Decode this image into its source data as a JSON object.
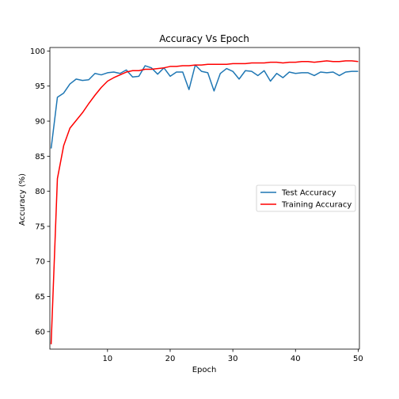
{
  "chart_data": {
    "type": "line",
    "title": "Accuracy Vs Epoch",
    "xlabel": "Epoch",
    "ylabel": "Accuracy (%)",
    "xlim": [
      0.8,
      50.2
    ],
    "ylim": [
      57.5,
      100.5
    ],
    "xticks": [
      10,
      20,
      30,
      40,
      50
    ],
    "yticks": [
      60,
      65,
      70,
      75,
      80,
      85,
      90,
      95,
      100
    ],
    "grid": false,
    "legend_position": "center-right",
    "x": [
      1,
      2,
      3,
      4,
      5,
      6,
      7,
      8,
      9,
      10,
      11,
      12,
      13,
      14,
      15,
      16,
      17,
      18,
      19,
      20,
      21,
      22,
      23,
      24,
      25,
      26,
      27,
      28,
      29,
      30,
      31,
      32,
      33,
      34,
      35,
      36,
      37,
      38,
      39,
      40,
      41,
      42,
      43,
      44,
      45,
      46,
      47,
      48,
      49,
      50
    ],
    "series": [
      {
        "name": "Test Accuracy",
        "color": "#1f77b4",
        "values": [
          86.1,
          93.4,
          94.0,
          95.3,
          96.0,
          95.8,
          95.9,
          96.8,
          96.6,
          96.9,
          97.0,
          96.8,
          97.3,
          96.3,
          96.4,
          97.9,
          97.6,
          96.7,
          97.6,
          96.4,
          97.0,
          97.0,
          94.5,
          98.0,
          97.1,
          96.9,
          94.3,
          96.8,
          97.5,
          97.1,
          96.0,
          97.2,
          97.1,
          96.5,
          97.2,
          95.7,
          96.8,
          96.2,
          97.0,
          96.8,
          96.9,
          96.9,
          96.5,
          97.0,
          96.9,
          97.0,
          96.5,
          97.0,
          97.1,
          97.1
        ]
      },
      {
        "name": "Training Accuracy",
        "color": "#ff0000",
        "values": [
          58.2,
          81.8,
          86.5,
          89.0,
          90.1,
          91.2,
          92.5,
          93.7,
          94.8,
          95.7,
          96.2,
          96.6,
          97.0,
          97.2,
          97.2,
          97.4,
          97.4,
          97.5,
          97.6,
          97.8,
          97.8,
          97.9,
          97.9,
          98.0,
          98.0,
          98.1,
          98.1,
          98.1,
          98.1,
          98.2,
          98.2,
          98.2,
          98.3,
          98.3,
          98.3,
          98.4,
          98.4,
          98.3,
          98.4,
          98.4,
          98.5,
          98.5,
          98.4,
          98.5,
          98.6,
          98.5,
          98.5,
          98.6,
          98.6,
          98.5
        ]
      }
    ]
  }
}
